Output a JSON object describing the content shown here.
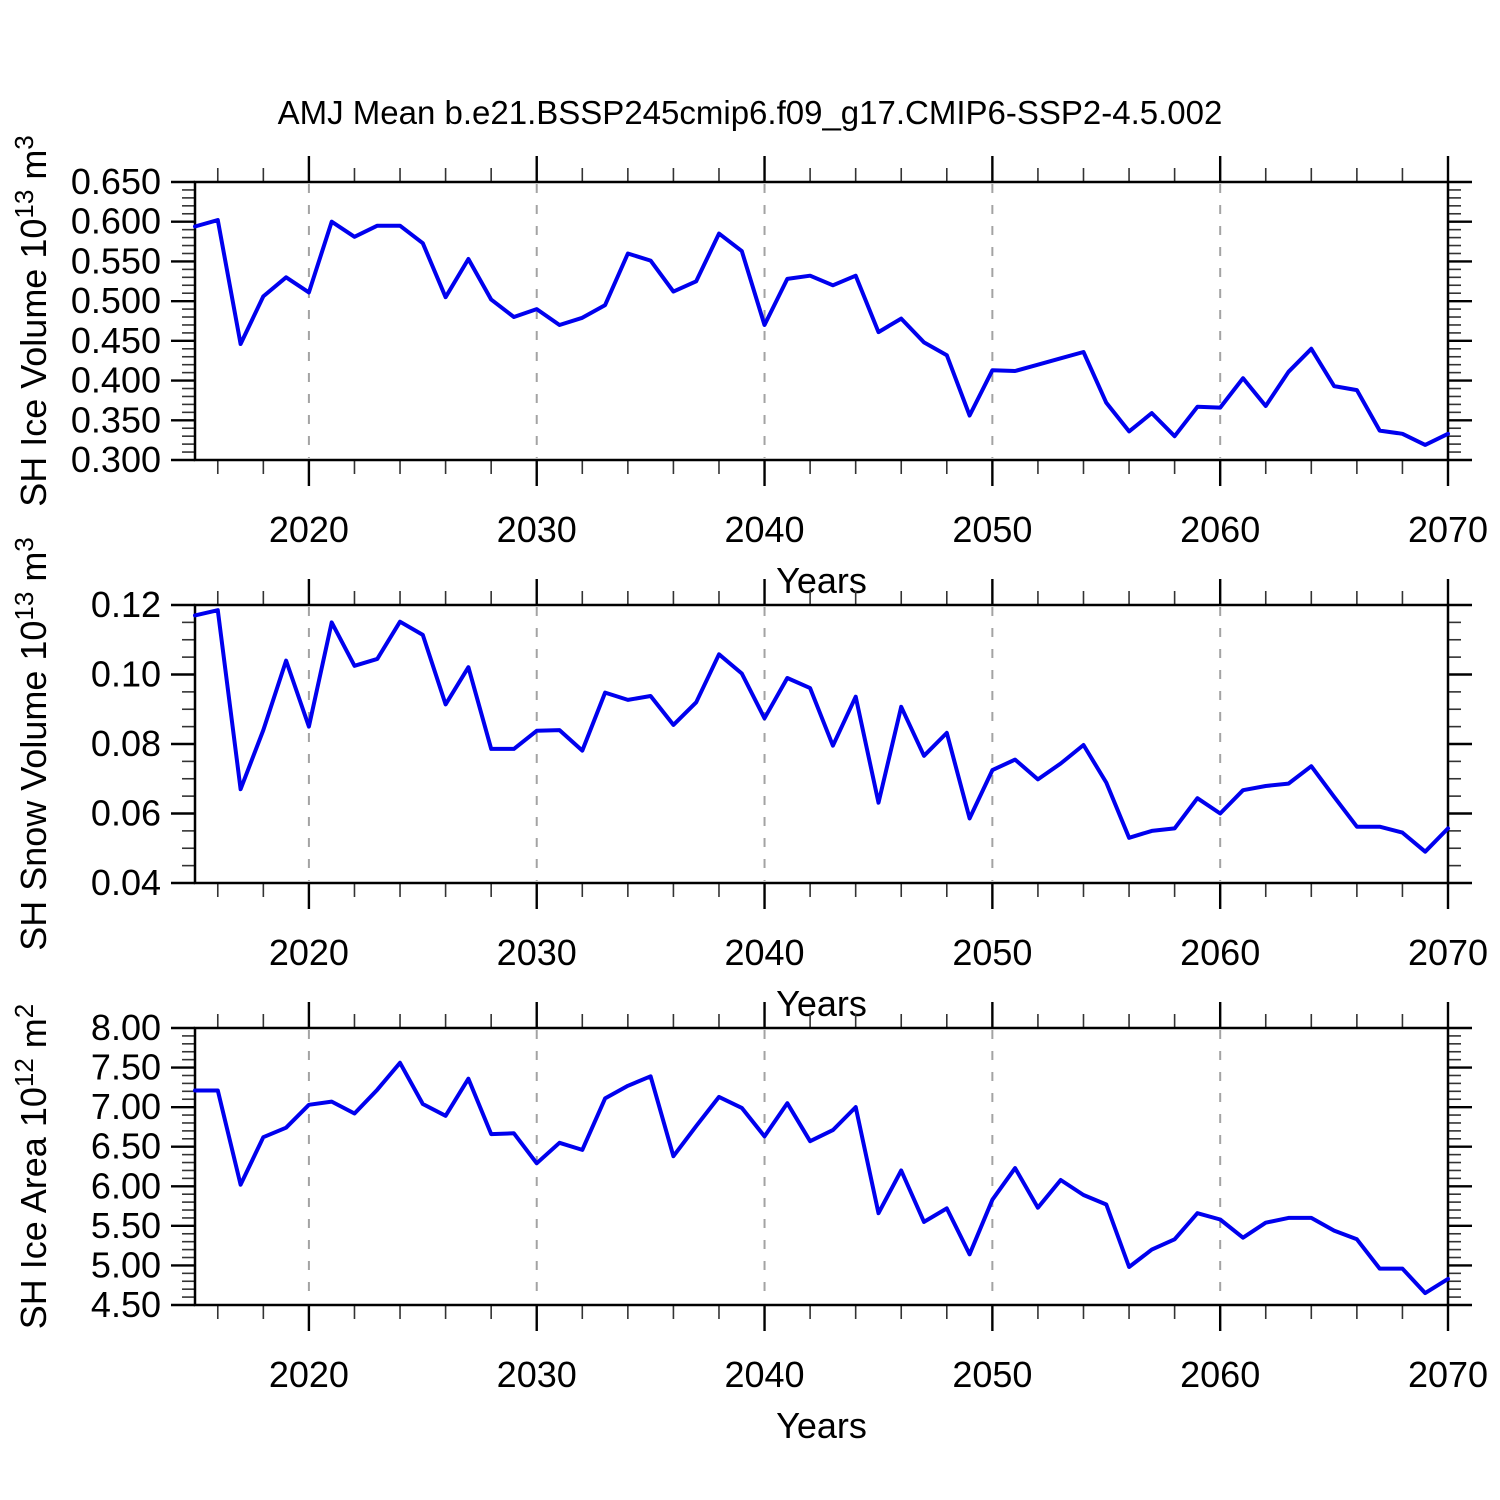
{
  "title": "AMJ Mean b.e21.BSSP245cmip6.f09_g17.CMIP6-SSP2-4.5.002",
  "line_color": "#0000EE",
  "years": [
    2015,
    2016,
    2017,
    2018,
    2019,
    2020,
    2021,
    2022,
    2023,
    2024,
    2025,
    2026,
    2027,
    2028,
    2029,
    2030,
    2031,
    2032,
    2033,
    2034,
    2035,
    2036,
    2037,
    2038,
    2039,
    2040,
    2041,
    2042,
    2043,
    2044,
    2045,
    2046,
    2047,
    2048,
    2049,
    2050,
    2051,
    2052,
    2053,
    2054,
    2055,
    2056,
    2057,
    2058,
    2059,
    2060,
    2061,
    2062,
    2063,
    2064,
    2065,
    2066,
    2067,
    2068,
    2069,
    2070
  ],
  "x_axis": {
    "label": "Years",
    "min": 2015,
    "max": 2070,
    "major_ticks": [
      2020,
      2030,
      2040,
      2050,
      2060,
      2070
    ],
    "tick_labels": [
      "2020",
      "2030",
      "2040",
      "2050",
      "2060",
      "2070"
    ],
    "minor_step": 2,
    "gridline_years": [
      2020,
      2030,
      2040,
      2050,
      2060
    ]
  },
  "chart_data": [
    {
      "type": "line",
      "name": "sh-ice-volume",
      "ylabel": "SH Ice Volume 10^13 m^3",
      "ylabel_parts": [
        {
          "t": "SH Ice Volume 10"
        },
        {
          "sup": "13"
        },
        {
          "t": " m"
        },
        {
          "sup": "3"
        }
      ],
      "ylim": [
        0.3,
        0.65
      ],
      "ytick_step": 0.05,
      "yminor_step": 0.01,
      "ytick_decimals": 3,
      "ytick_labels": [
        "0.300",
        "0.350",
        "0.400",
        "0.450",
        "0.500",
        "0.550",
        "0.600",
        "0.650"
      ],
      "grid": "vertical-dashed",
      "legend": "none",
      "values": [
        0.594,
        0.602,
        0.446,
        0.506,
        0.53,
        0.511,
        0.6,
        0.581,
        0.595,
        0.595,
        0.573,
        0.505,
        0.553,
        0.502,
        0.48,
        0.49,
        0.47,
        0.479,
        0.495,
        0.56,
        0.551,
        0.512,
        0.525,
        0.585,
        0.563,
        0.47,
        0.528,
        0.532,
        0.52,
        0.532,
        0.461,
        0.478,
        0.448,
        0.432,
        0.356,
        0.413,
        0.412,
        0.42,
        0.428,
        0.436,
        0.372,
        0.336,
        0.359,
        0.33,
        0.367,
        0.366,
        0.403,
        0.368,
        0.411,
        0.44,
        0.393,
        0.388,
        0.337,
        0.333,
        0.319,
        0.333
      ]
    },
    {
      "type": "line",
      "name": "sh-snow-volume",
      "ylabel": "SH Snow Volume 10^13 m^3",
      "ylabel_parts": [
        {
          "t": "SH Snow Volume 10"
        },
        {
          "sup": "13"
        },
        {
          "t": " m"
        },
        {
          "sup": "3"
        }
      ],
      "ylim": [
        0.04,
        0.12
      ],
      "ytick_step": 0.02,
      "yminor_step": 0.005,
      "ytick_decimals": 2,
      "ytick_labels": [
        "0.04",
        "0.06",
        "0.08",
        "0.10",
        "0.12"
      ],
      "grid": "vertical-dashed",
      "legend": "none",
      "values": [
        0.117,
        0.1185,
        0.067,
        0.084,
        0.104,
        0.085,
        0.115,
        0.1025,
        0.1045,
        0.1152,
        0.1114,
        0.0914,
        0.1021,
        0.0786,
        0.0786,
        0.0838,
        0.084,
        0.0781,
        0.0948,
        0.0927,
        0.0938,
        0.0855,
        0.092,
        0.1058,
        0.1003,
        0.0874,
        0.099,
        0.0961,
        0.0795,
        0.0936,
        0.0631,
        0.0907,
        0.0766,
        0.0832,
        0.0586,
        0.0725,
        0.0755,
        0.0698,
        0.0744,
        0.0797,
        0.0689,
        0.053,
        0.055,
        0.0557,
        0.0644,
        0.06,
        0.0667,
        0.0679,
        0.0686,
        0.0736,
        0.0648,
        0.0562,
        0.0562,
        0.0545,
        0.049,
        0.0557
      ]
    },
    {
      "type": "line",
      "name": "sh-ice-area",
      "ylabel": "SH Ice Area 10^12 m^2",
      "ylabel_parts": [
        {
          "t": "SH Ice Area 10"
        },
        {
          "sup": "12"
        },
        {
          "t": " m"
        },
        {
          "sup": "2"
        }
      ],
      "ylim": [
        4.5,
        8.0
      ],
      "ytick_step": 0.5,
      "yminor_step": 0.1,
      "ytick_decimals": 2,
      "ytick_labels": [
        "4.50",
        "5.00",
        "5.50",
        "6.00",
        "6.50",
        "7.00",
        "7.50",
        "8.00"
      ],
      "grid": "vertical-dashed",
      "legend": "none",
      "values": [
        7.21,
        7.21,
        6.02,
        6.62,
        6.74,
        7.03,
        7.07,
        6.92,
        7.22,
        7.56,
        7.04,
        6.89,
        7.36,
        6.66,
        6.67,
        6.29,
        6.55,
        6.46,
        7.11,
        7.27,
        7.39,
        6.38,
        6.76,
        7.13,
        6.99,
        6.63,
        7.05,
        6.57,
        6.71,
        7.0,
        5.66,
        6.2,
        5.55,
        5.72,
        5.14,
        5.83,
        6.23,
        5.73,
        6.08,
        5.89,
        5.77,
        4.98,
        5.2,
        5.33,
        5.66,
        5.58,
        5.35,
        5.54,
        5.6,
        5.6,
        5.44,
        5.33,
        4.96,
        4.96,
        4.65,
        4.83
      ]
    }
  ]
}
